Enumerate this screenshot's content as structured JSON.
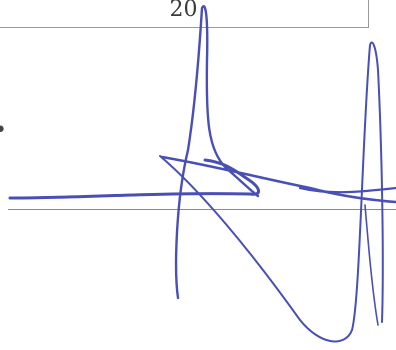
{
  "form": {
    "cell_value": "20"
  },
  "signature": {
    "ink_color": "#4a4fb5"
  }
}
